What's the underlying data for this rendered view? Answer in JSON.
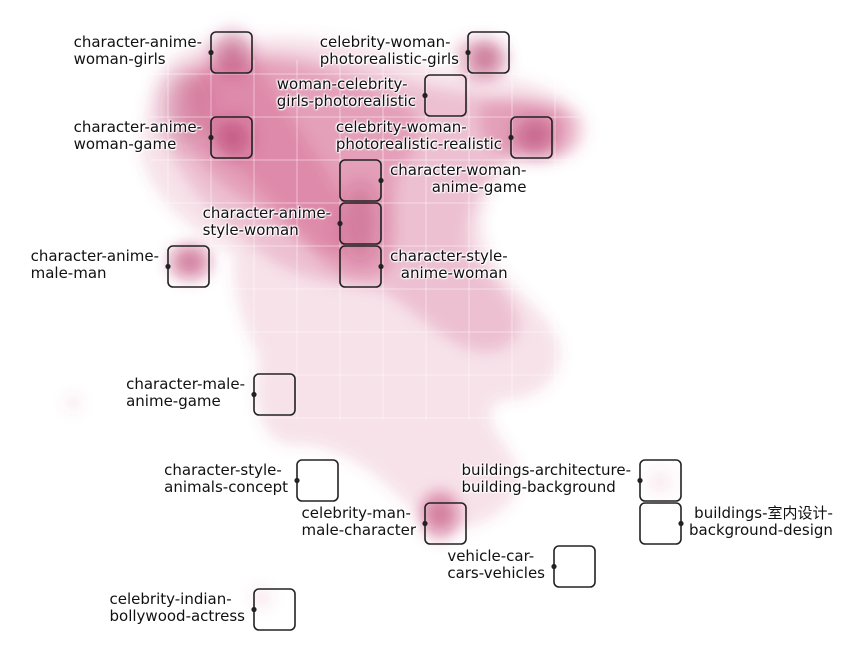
{
  "colors": {
    "density": "#cc4d7a",
    "tile_stroke": "#222222",
    "dot": "#222222",
    "text": "#111111",
    "background": "#ffffff"
  },
  "clusters": [
    {
      "id": "c1",
      "lines": [
        "character-anime-",
        "woman-girls"
      ]
    },
    {
      "id": "c2",
      "lines": [
        "celebrity-woman-",
        "photorealistic-girls"
      ]
    },
    {
      "id": "c3",
      "lines": [
        "woman-celebrity-",
        "girls-photorealistic"
      ]
    },
    {
      "id": "c4",
      "lines": [
        "character-anime-",
        "woman-game"
      ]
    },
    {
      "id": "c5",
      "lines": [
        "celebrity-woman-",
        "photorealistic-realistic"
      ]
    },
    {
      "id": "c6",
      "lines": [
        "character-woman-",
        "anime-game"
      ]
    },
    {
      "id": "c7",
      "lines": [
        "character-anime-",
        "style-woman"
      ]
    },
    {
      "id": "c8",
      "lines": [
        "character-anime-",
        "male-man"
      ]
    },
    {
      "id": "c9",
      "lines": [
        "character-style-",
        "anime-woman"
      ]
    },
    {
      "id": "c10",
      "lines": [
        "character-male-",
        "anime-game"
      ]
    },
    {
      "id": "c11",
      "lines": [
        "character-style-",
        "animals-concept"
      ]
    },
    {
      "id": "c12",
      "lines": [
        "buildings-architecture-",
        "building-background"
      ]
    },
    {
      "id": "c13",
      "lines": [
        "celebrity-man-",
        "male-character"
      ]
    },
    {
      "id": "c14",
      "lines": [
        "buildings-室内设计-",
        "background-design"
      ]
    },
    {
      "id": "c15",
      "lines": [
        "vehicle-car-",
        "cars-vehicles"
      ]
    },
    {
      "id": "c16",
      "lines": [
        "celebrity-indian-",
        "bollywood-actress"
      ]
    }
  ]
}
